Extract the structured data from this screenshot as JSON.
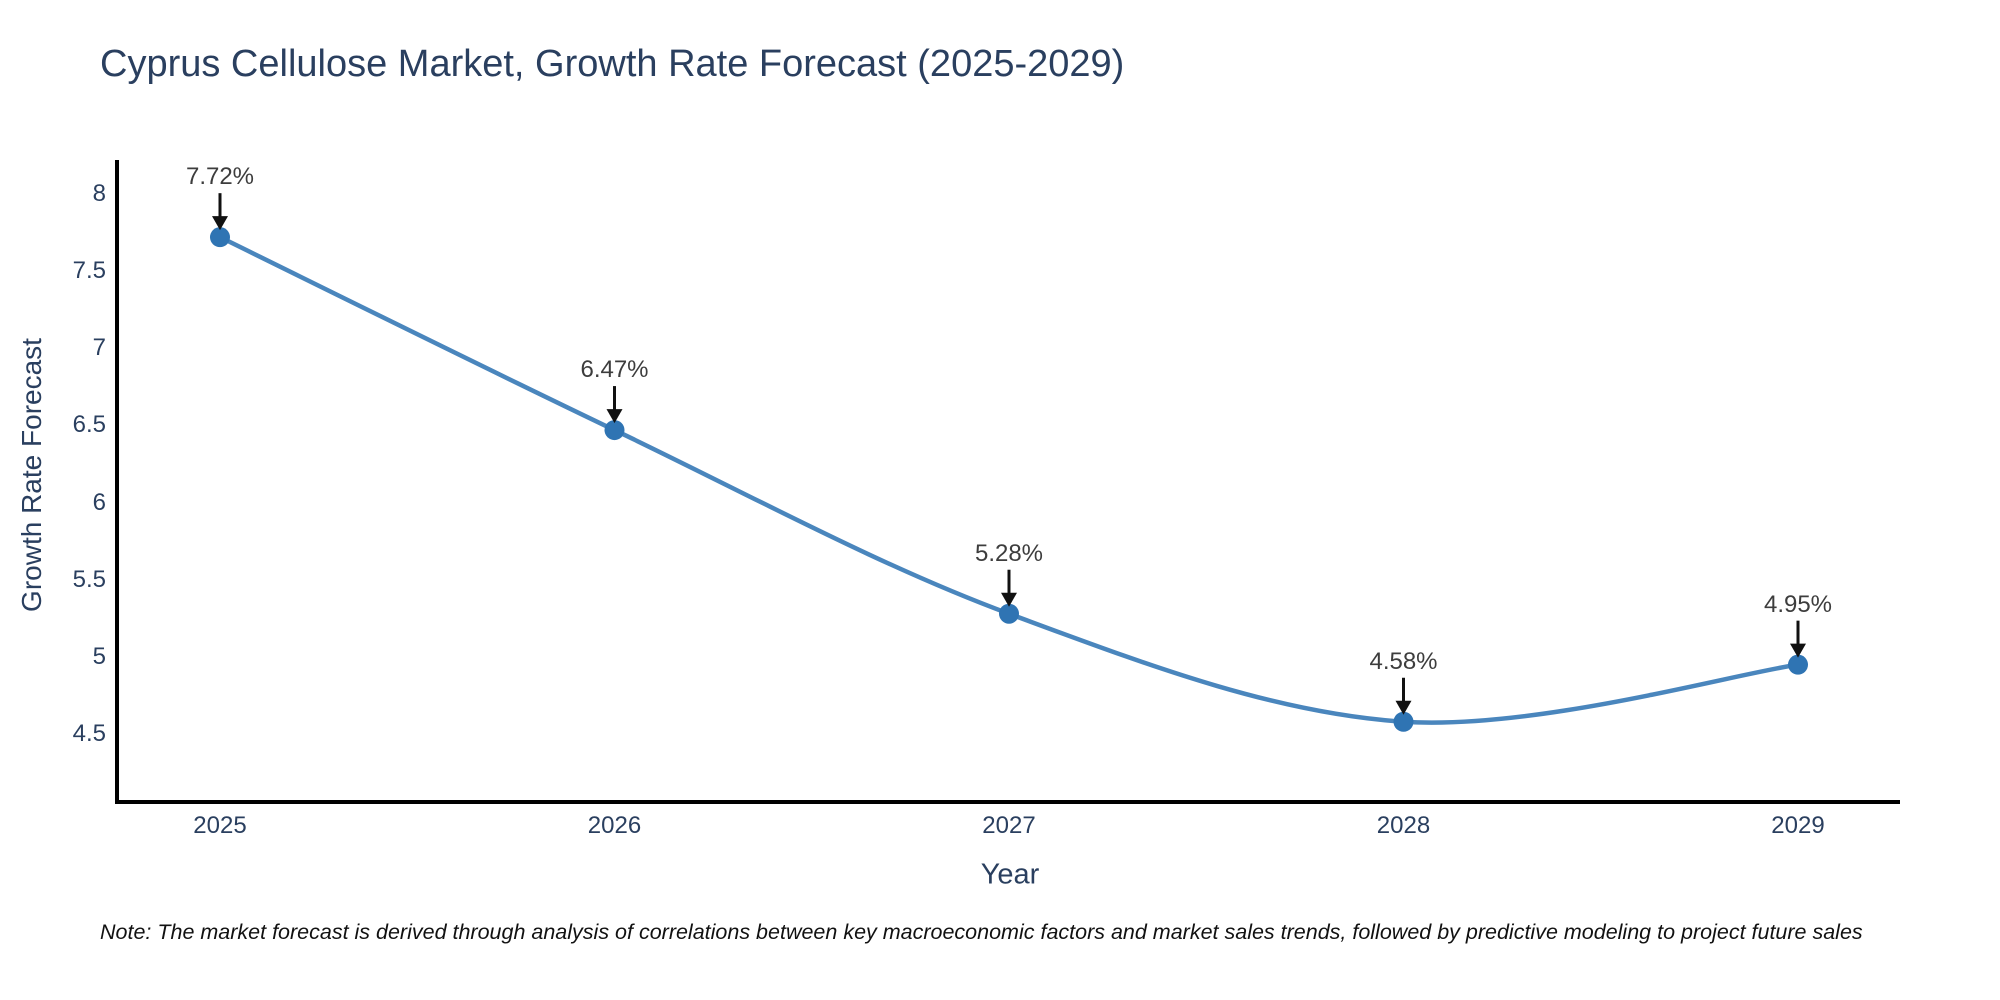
{
  "title": "Cyprus Cellulose Market, Growth Rate Forecast (2025-2029)",
  "note": "Note: The market forecast is derived through analysis of correlations between key macroeconomic factors and market sales trends, followed by predictive modeling to project future sales",
  "chart_data": {
    "type": "line",
    "title": "Cyprus Cellulose Market, Growth Rate Forecast (2025-2029)",
    "categories": [
      "2025",
      "2026",
      "2027",
      "2028",
      "2029"
    ],
    "series": [
      {
        "name": "Growth Rate Forecast",
        "values": [
          7.72,
          6.47,
          5.28,
          4.58,
          4.95
        ]
      }
    ],
    "point_labels": [
      "7.72%",
      "6.47%",
      "5.28%",
      "4.58%",
      "4.95%"
    ],
    "xlabel": "Year",
    "ylabel": "Growth Rate Forecast",
    "yticks": [
      8,
      7.5,
      7,
      6.5,
      6,
      5.5,
      5,
      4.5
    ],
    "ylim": [
      4.06,
      8.22
    ],
    "grid": false,
    "legend_position": "none",
    "line_shape": "spline",
    "annotation_arrows": true,
    "colors": {
      "line": "#4a86bd",
      "marker": "#2f74b3",
      "axis": "#000000",
      "heading_text": "#2a3f5f",
      "tick_text": "#2a3f5f",
      "annotation_text": "#3d3d3d",
      "arrow": "#111111",
      "background": "#ffffff"
    }
  }
}
